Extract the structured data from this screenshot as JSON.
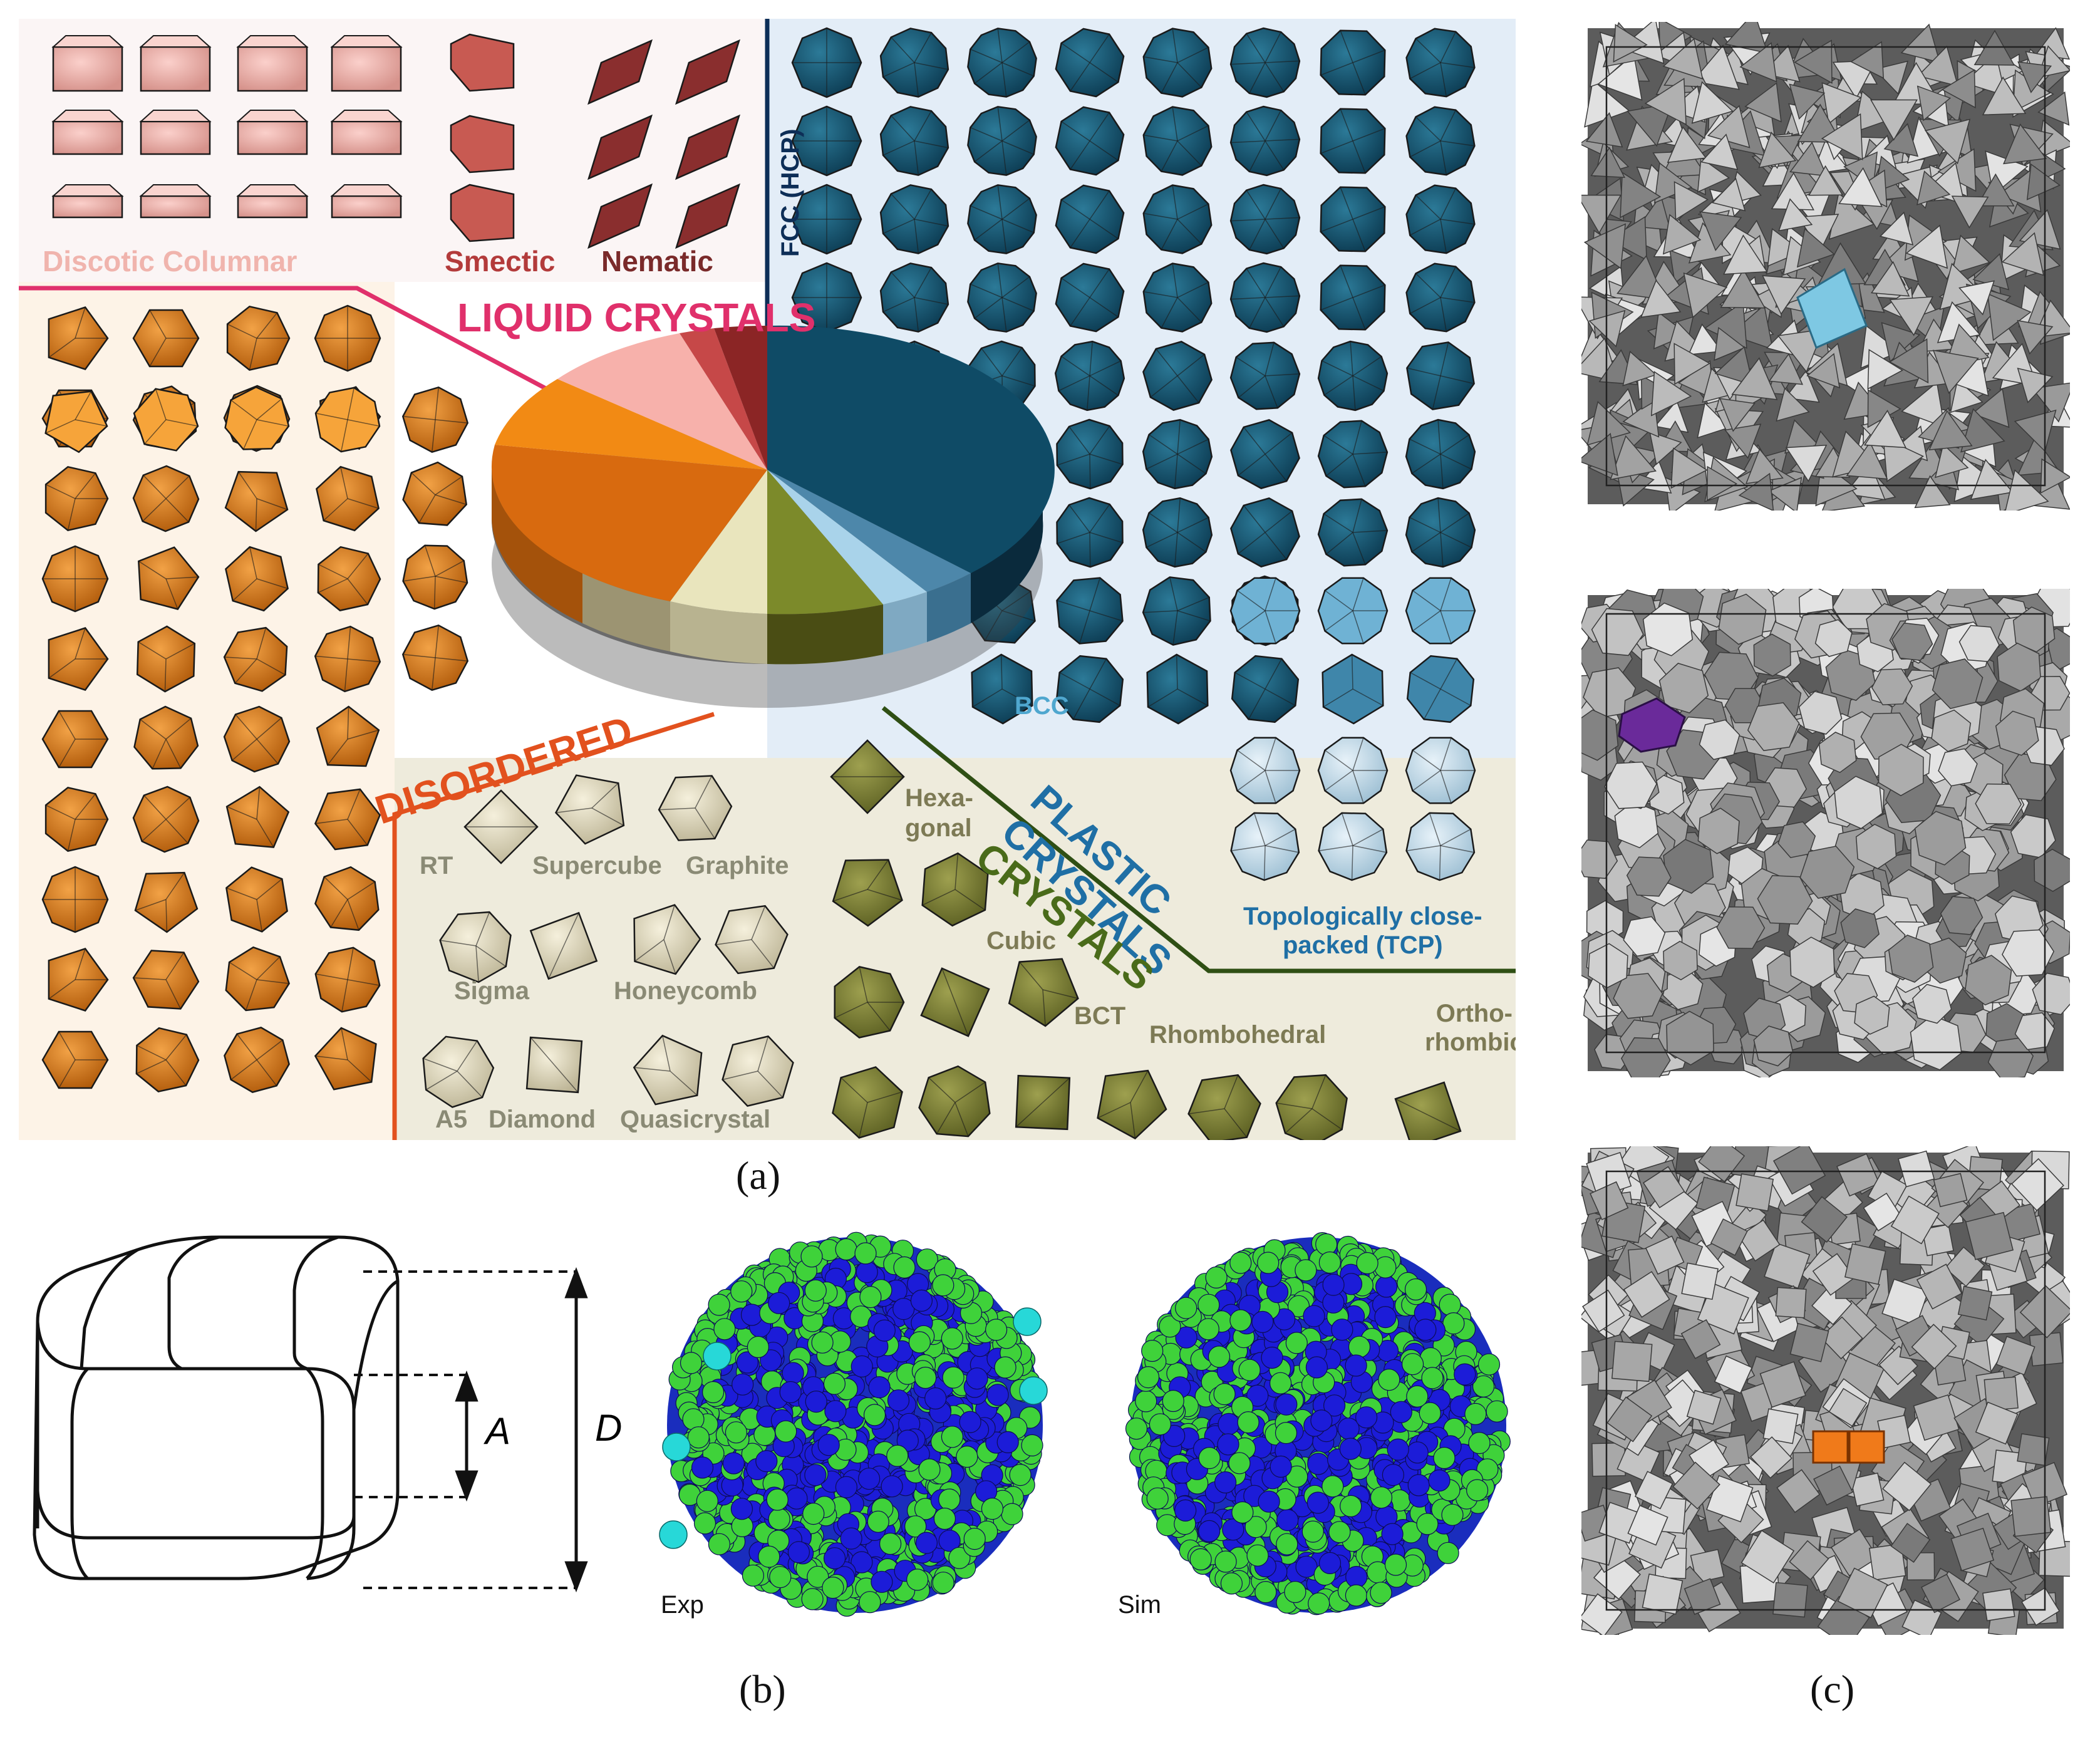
{
  "captions": {
    "a": "(a)",
    "b": "(b)",
    "c": "(c)"
  },
  "categories": {
    "liquid_crystals": "LIQUID CRYSTALS",
    "plastic_crystals": [
      "PLASTIC",
      "CRYSTALS"
    ],
    "crystals": "CRYSTALS",
    "disordered": "DISORDERED"
  },
  "labels": {
    "discotic": "Discotic Columnar",
    "smectic": "Smectic",
    "nematic": "Nematic",
    "fcc": "FCC (HCP)",
    "bcc": "BCC",
    "tcp": [
      "Topologically close-",
      "packed (TCP)"
    ],
    "rt": "RT",
    "supercube": "Supercube",
    "graphite": "Graphite",
    "sigma": "Sigma",
    "honeycomb": "Honeycomb",
    "a5": "A5",
    "diamond": "Diamond",
    "quasicrystal": "Quasicrystal",
    "hexagonal": [
      "Hexa-",
      "gonal"
    ],
    "cubic": "Cubic",
    "bct": "BCT",
    "rhombohedral": "Rhombohedral",
    "orthorhombic": [
      "Ortho-",
      "rhombic"
    ]
  },
  "panel_b": {
    "dim_a": "A",
    "dim_d": "D",
    "exp": "Exp",
    "sim": "Sim"
  },
  "colors": {
    "lc_pink": "#f4b7b0",
    "lc_red": "#a93f3f",
    "lc_dark": "#7a2a2a",
    "disordered": "#d97316",
    "fcc": "#0f4b66",
    "tcp": "#bfd9e8",
    "crystals": "#7d8238",
    "crystals_light": "#e8e3c4",
    "lc_accent": "#e0306b",
    "disordered_accent": "#e2511e",
    "plastic_accent": "#1f6fa5",
    "crystals_accent": "#4a6b1a",
    "green_particle": "#3fcf3a",
    "blue_particle": "#1e1ee0",
    "highlight_c1": "#7ec8e3",
    "highlight_c2": "#6a2a9a",
    "highlight_c3": "#f07a1a"
  }
}
